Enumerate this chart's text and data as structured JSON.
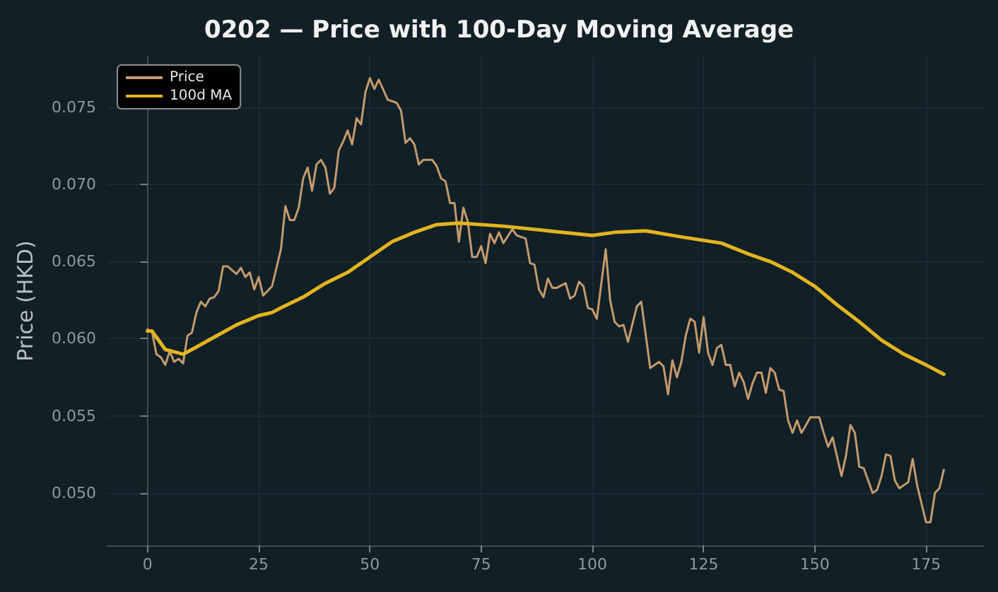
{
  "chart_data": {
    "type": "line",
    "title": "0202 — Price with 100-Day Moving Average",
    "ylabel": "Price (HKD)",
    "xlim": [
      -9,
      188
    ],
    "xticks": [
      0,
      25,
      50,
      75,
      100,
      125,
      150,
      175
    ],
    "ylim": [
      0.0466,
      0.0783
    ],
    "yticks": [
      {
        "value": 0.05,
        "label": "0.050"
      },
      {
        "value": 0.055,
        "label": "0.055"
      },
      {
        "value": 0.06,
        "label": "0.060"
      },
      {
        "value": 0.065,
        "label": "0.065"
      },
      {
        "value": 0.07,
        "label": "0.070"
      },
      {
        "value": 0.075,
        "label": "0.075"
      }
    ],
    "grid": true,
    "legend": "top left",
    "series": [
      {
        "name": "Price",
        "color": "#c49a6c",
        "x": [
          0,
          1,
          2,
          3,
          4,
          5,
          6,
          7,
          8,
          9,
          10,
          11,
          12,
          13,
          14,
          15,
          16,
          17,
          18,
          20,
          21,
          22,
          23,
          24,
          25,
          26,
          28,
          30,
          31,
          32,
          33,
          34,
          35,
          36,
          37,
          38,
          39,
          40,
          41,
          42,
          43,
          44,
          45,
          46,
          47,
          48,
          49,
          50,
          51,
          52,
          54,
          56,
          57,
          58,
          59,
          60,
          61,
          62,
          64,
          65,
          66,
          67,
          68,
          69,
          70,
          71,
          72,
          73,
          74,
          75,
          76,
          77,
          78,
          79,
          80,
          82,
          83,
          85,
          86,
          87,
          88,
          89,
          90,
          91,
          92,
          94,
          95,
          96,
          97,
          98,
          99,
          100,
          101,
          103,
          104,
          105,
          106,
          107,
          108,
          110,
          111,
          113,
          115,
          116,
          117,
          118,
          119,
          120,
          121,
          122,
          123,
          124,
          125,
          126,
          127,
          128,
          129,
          130,
          131,
          132,
          133,
          134,
          135,
          136,
          137,
          138,
          139,
          140,
          141,
          142,
          143,
          144,
          145,
          146,
          147,
          148,
          149,
          151,
          152,
          153,
          154,
          156,
          157,
          158,
          159,
          160,
          161,
          162,
          163,
          164,
          165,
          166,
          167,
          168,
          169,
          170,
          171,
          172,
          173,
          174,
          175,
          176,
          177,
          178,
          179
        ],
        "values": [
          0.0606,
          0.0605,
          0.059,
          0.0588,
          0.0583,
          0.0592,
          0.0585,
          0.0587,
          0.0584,
          0.0602,
          0.0604,
          0.0617,
          0.0624,
          0.0621,
          0.0626,
          0.0627,
          0.0631,
          0.0647,
          0.0647,
          0.0642,
          0.0646,
          0.064,
          0.0643,
          0.0632,
          0.064,
          0.0628,
          0.0634,
          0.0658,
          0.0686,
          0.0677,
          0.0677,
          0.0685,
          0.0704,
          0.0711,
          0.0696,
          0.0713,
          0.0716,
          0.0711,
          0.0694,
          0.0698,
          0.0722,
          0.0728,
          0.0735,
          0.0726,
          0.0743,
          0.0739,
          0.076,
          0.0769,
          0.0762,
          0.0768,
          0.0755,
          0.0753,
          0.0748,
          0.0727,
          0.073,
          0.0726,
          0.0713,
          0.0716,
          0.0716,
          0.0712,
          0.0704,
          0.0702,
          0.0688,
          0.0688,
          0.0663,
          0.0685,
          0.0676,
          0.0653,
          0.0653,
          0.066,
          0.0649,
          0.0668,
          0.0662,
          0.0669,
          0.0662,
          0.0671,
          0.0667,
          0.0665,
          0.0649,
          0.0648,
          0.0632,
          0.0627,
          0.0639,
          0.0633,
          0.0633,
          0.0636,
          0.0626,
          0.0628,
          0.0637,
          0.0634,
          0.062,
          0.0619,
          0.0613,
          0.0658,
          0.0625,
          0.0611,
          0.0608,
          0.0609,
          0.0598,
          0.0621,
          0.0624,
          0.0581,
          0.0585,
          0.0582,
          0.0564,
          0.0586,
          0.0575,
          0.0585,
          0.0602,
          0.0613,
          0.0611,
          0.0591,
          0.0614,
          0.0591,
          0.0583,
          0.0594,
          0.0596,
          0.0583,
          0.0583,
          0.0569,
          0.0578,
          0.0572,
          0.0561,
          0.0571,
          0.0578,
          0.0578,
          0.0565,
          0.0581,
          0.0578,
          0.0567,
          0.0566,
          0.0547,
          0.0539,
          0.0547,
          0.0539,
          0.0544,
          0.0549,
          0.0549,
          0.0539,
          0.053,
          0.0536,
          0.0511,
          0.0524,
          0.0544,
          0.0539,
          0.0517,
          0.0516,
          0.0508,
          0.05,
          0.0502,
          0.0511,
          0.0525,
          0.0524,
          0.0508,
          0.0503,
          0.0505,
          0.0507,
          0.0522,
          0.0505,
          0.0493,
          0.0481,
          0.0481,
          0.05,
          0.0503,
          0.0515
        ]
      },
      {
        "name": "100d MA",
        "color": "#e2b41f",
        "x": [
          0,
          1,
          4,
          8,
          10,
          15,
          20,
          25,
          28,
          30,
          35,
          40,
          45,
          50,
          55,
          60,
          65,
          70,
          80,
          90,
          100,
          105,
          112,
          120,
          129,
          135,
          140,
          145,
          150,
          155,
          160,
          165,
          170,
          175,
          179
        ],
        "values": [
          0.0605,
          0.0605,
          0.0593,
          0.059,
          0.0593,
          0.0601,
          0.0609,
          0.0615,
          0.0617,
          0.062,
          0.0627,
          0.0636,
          0.0643,
          0.0653,
          0.0663,
          0.0669,
          0.0674,
          0.0675,
          0.0673,
          0.067,
          0.0667,
          0.0669,
          0.067,
          0.0666,
          0.0662,
          0.0655,
          0.065,
          0.0643,
          0.0634,
          0.0622,
          0.0611,
          0.0599,
          0.059,
          0.0583,
          0.0577
        ]
      }
    ]
  }
}
